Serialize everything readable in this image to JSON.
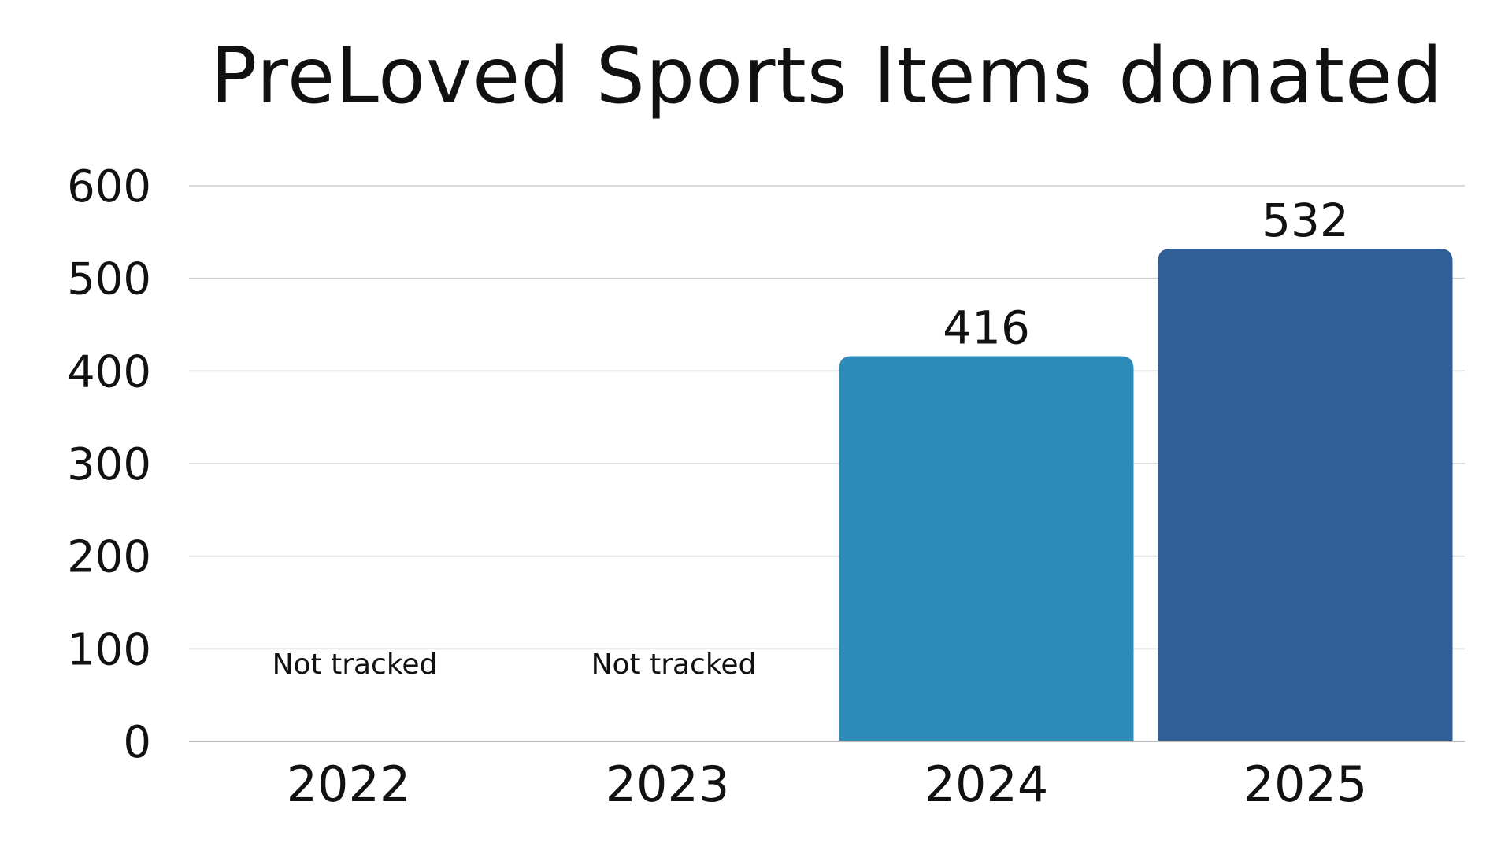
{
  "chart_data": {
    "type": "bar",
    "title": "PreLoved Sports Items donated",
    "categories": [
      "2022",
      "2023",
      "2024",
      "2025"
    ],
    "values": [
      null,
      null,
      416,
      532
    ],
    "data_labels": [
      "",
      "",
      "416",
      "532"
    ],
    "notes": [
      "Not tracked",
      "Not tracked",
      "",
      ""
    ],
    "bar_colors": [
      "#2E8BB9",
      "#2E8BB9",
      "#2E8BB9",
      "#2F5F96"
    ],
    "ylim": [
      0,
      600
    ],
    "yticks": [
      "0",
      "100",
      "200",
      "300",
      "400",
      "500",
      "600"
    ],
    "grid": true,
    "xlabel": "",
    "ylabel": ""
  }
}
